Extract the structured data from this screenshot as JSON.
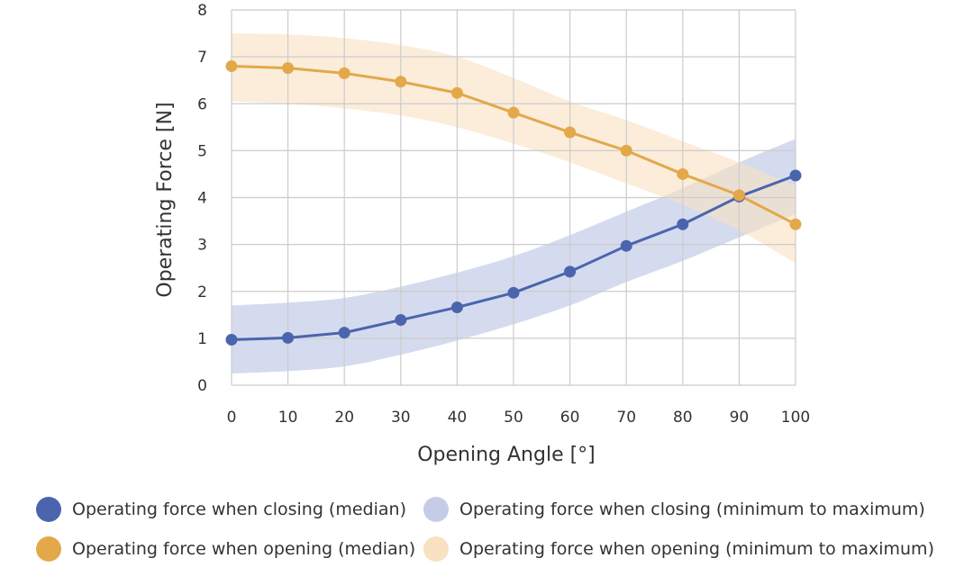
{
  "chart_data": {
    "type": "line",
    "xlabel": "Opening Angle [°]",
    "ylabel": "Operating Force [N]",
    "xlim": [
      0,
      100
    ],
    "ylim": [
      0,
      8
    ],
    "x_ticks": [
      "0",
      "10",
      "20",
      "30",
      "40",
      "50",
      "60",
      "70",
      "80",
      "90",
      "100"
    ],
    "y_ticks": [
      "0",
      "1",
      "2",
      "3",
      "4",
      "5",
      "6",
      "7",
      "8"
    ],
    "grid": true,
    "legend_position": "bottom",
    "x": [
      0,
      10,
      20,
      30,
      40,
      50,
      60,
      70,
      80,
      90,
      100
    ],
    "series": [
      {
        "name": "Operating force when closing (median)",
        "kind": "line",
        "color": "#4a65ad",
        "values": [
          0.97,
          1.01,
          1.12,
          1.39,
          1.66,
          1.97,
          2.42,
          2.97,
          3.43,
          4.02,
          4.47
        ]
      },
      {
        "name": "Operating force when closing (minimum to maximum)",
        "kind": "band",
        "color": "#b9c3e3",
        "lower": [
          0.25,
          0.3,
          0.4,
          0.65,
          0.95,
          1.3,
          1.7,
          2.2,
          2.65,
          3.15,
          3.65
        ],
        "upper": [
          1.7,
          1.76,
          1.86,
          2.1,
          2.4,
          2.75,
          3.2,
          3.7,
          4.2,
          4.75,
          5.25
        ]
      },
      {
        "name": "Operating force when opening (median)",
        "kind": "line",
        "color": "#e3a84a",
        "values": [
          6.8,
          6.76,
          6.65,
          6.47,
          6.23,
          5.81,
          5.39,
          5.0,
          4.5,
          4.05,
          3.43
        ]
      },
      {
        "name": "Operating force when opening (minimum to maximum)",
        "kind": "band",
        "color": "#f9e1c2",
        "lower": [
          6.05,
          6.0,
          5.9,
          5.75,
          5.5,
          5.15,
          4.75,
          4.3,
          3.85,
          3.3,
          2.6
        ],
        "upper": [
          7.5,
          7.48,
          7.4,
          7.25,
          7.0,
          6.55,
          6.05,
          5.65,
          5.2,
          4.75,
          4.25
        ]
      }
    ]
  },
  "legend": {
    "items": [
      {
        "label": "Operating force when closing (median)",
        "color": "#4a65ad"
      },
      {
        "label": "Operating force when closing (minimum to maximum)",
        "color": "#c4cce6"
      },
      {
        "label": "Operating force when opening (median)",
        "color": "#e3a84a"
      },
      {
        "label": "Operating force when opening (minimum to maximum)",
        "color": "#f9e1c2"
      }
    ]
  }
}
